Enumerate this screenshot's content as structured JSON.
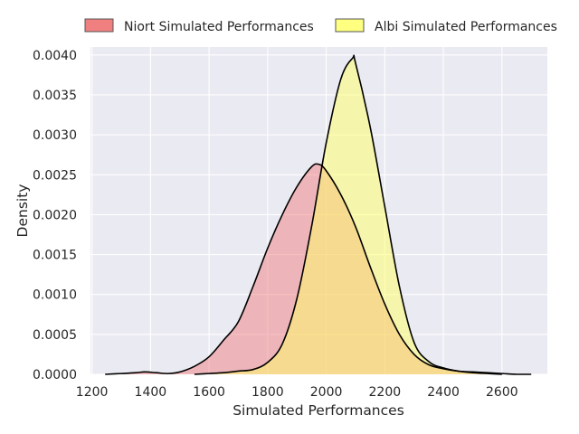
{
  "chart_data": {
    "type": "area",
    "xlabel": "Simulated Performances",
    "ylabel": "Density",
    "xlim": [
      1195,
      2755
    ],
    "ylim": [
      0,
      0.0041
    ],
    "x_ticks": [
      1200,
      1400,
      1600,
      1800,
      2000,
      2200,
      2400,
      2600
    ],
    "y_ticks": [
      0.0,
      0.0005,
      0.001,
      0.0015,
      0.002,
      0.0025,
      0.003,
      0.0035,
      0.004
    ],
    "x_tick_labels": [
      "1200",
      "1400",
      "1600",
      "1800",
      "2000",
      "2200",
      "2400",
      "2600"
    ],
    "y_tick_labels": [
      "0.0000",
      "0.0005",
      "0.0010",
      "0.0015",
      "0.0020",
      "0.0025",
      "0.0030",
      "0.0035",
      "0.0040"
    ],
    "grid": true,
    "legend_position": "top",
    "series": [
      {
        "name": "Niort Simulated Performances",
        "color": "#f08080",
        "points": [
          [
            1245,
            0.0
          ],
          [
            1300,
            1e-05
          ],
          [
            1350,
            2e-05
          ],
          [
            1380,
            3e-05
          ],
          [
            1420,
            2e-05
          ],
          [
            1460,
            1e-05
          ],
          [
            1500,
            3e-05
          ],
          [
            1550,
            0.0001
          ],
          [
            1600,
            0.00022
          ],
          [
            1650,
            0.00043
          ],
          [
            1700,
            0.00066
          ],
          [
            1750,
            0.0011
          ],
          [
            1800,
            0.00158
          ],
          [
            1850,
            0.002
          ],
          [
            1900,
            0.00235
          ],
          [
            1950,
            0.0026
          ],
          [
            1975,
            0.00263
          ],
          [
            2000,
            0.00255
          ],
          [
            2050,
            0.00225
          ],
          [
            2100,
            0.00185
          ],
          [
            2150,
            0.00135
          ],
          [
            2200,
            0.00088
          ],
          [
            2250,
            0.0005
          ],
          [
            2300,
            0.00025
          ],
          [
            2350,
            0.00012
          ],
          [
            2400,
            7e-05
          ],
          [
            2450,
            4e-05
          ],
          [
            2500,
            3e-05
          ],
          [
            2550,
            2e-05
          ],
          [
            2600,
            1e-05
          ],
          [
            2650,
            0.0
          ],
          [
            2700,
            0.0
          ]
        ]
      },
      {
        "name": "Albi Simulated Performances",
        "color": "#ffff66",
        "points": [
          [
            1550,
            0.0
          ],
          [
            1600,
            1e-05
          ],
          [
            1650,
            2e-05
          ],
          [
            1700,
            4e-05
          ],
          [
            1750,
            6e-05
          ],
          [
            1800,
            0.00015
          ],
          [
            1850,
            0.00038
          ],
          [
            1900,
            0.00095
          ],
          [
            1950,
            0.00185
          ],
          [
            2000,
            0.0029
          ],
          [
            2050,
            0.0037
          ],
          [
            2090,
            0.00396
          ],
          [
            2100,
            0.0039
          ],
          [
            2150,
            0.0031
          ],
          [
            2200,
            0.0021
          ],
          [
            2250,
            0.0011
          ],
          [
            2300,
            0.0004
          ],
          [
            2350,
            0.00016
          ],
          [
            2400,
            8e-05
          ],
          [
            2450,
            4e-05
          ],
          [
            2500,
            2e-05
          ],
          [
            2550,
            1e-05
          ],
          [
            2600,
            0.0
          ]
        ]
      }
    ]
  }
}
